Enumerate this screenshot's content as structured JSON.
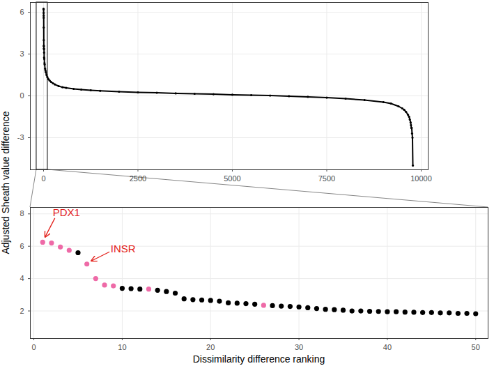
{
  "chart_data": [
    {
      "type": "scatter",
      "x": [
        1,
        2,
        3,
        4,
        5,
        6,
        7,
        8,
        9,
        10,
        13,
        16,
        17,
        20,
        26,
        30,
        40,
        50,
        60,
        80,
        100,
        130,
        160,
        200,
        250,
        300,
        400,
        500,
        600,
        800,
        1000,
        1250,
        1500,
        2000,
        2500,
        3000,
        3500,
        4000,
        4500,
        5000,
        5500,
        6000,
        6500,
        7000,
        7500,
        8000,
        8500,
        9000,
        9200,
        9400,
        9500,
        9550,
        9600,
        9650,
        9680,
        9700,
        9720,
        9730,
        9740,
        9750,
        9760,
        9770,
        9780
      ],
      "values": [
        6.25,
        6.2,
        5.95,
        5.75,
        5.6,
        4.9,
        4.0,
        3.6,
        3.55,
        3.4,
        3.35,
        3.1,
        2.75,
        2.65,
        2.35,
        2.25,
        1.95,
        1.83,
        1.7,
        1.5,
        1.35,
        1.2,
        1.1,
        1.0,
        0.9,
        0.82,
        0.7,
        0.62,
        0.57,
        0.5,
        0.45,
        0.4,
        0.36,
        0.3,
        0.25,
        0.22,
        0.18,
        0.15,
        0.12,
        0.08,
        0.05,
        0.02,
        -0.02,
        -0.07,
        -0.13,
        -0.2,
        -0.3,
        -0.45,
        -0.55,
        -0.75,
        -0.9,
        -1.0,
        -1.15,
        -1.35,
        -1.5,
        -1.7,
        -1.9,
        -2.1,
        -2.3,
        -2.3,
        -2.7,
        -3.0,
        -5.0
      ],
      "color": "#000000",
      "xlim": [
        -350,
        10185
      ],
      "xticks": [
        0,
        2500,
        5000,
        7500,
        10000
      ],
      "ylim": [
        -5.3,
        6.7
      ],
      "yticks": [
        -3,
        0,
        3,
        6
      ],
      "grid": true,
      "zoom_box": {
        "x": [
          -185,
          110
        ]
      }
    },
    {
      "type": "scatter",
      "x": [
        1,
        2,
        3,
        4,
        5,
        6,
        7,
        8,
        9,
        10,
        11,
        12,
        13,
        14,
        15,
        16,
        17,
        18,
        19,
        20,
        21,
        22,
        23,
        24,
        25,
        26,
        27,
        28,
        29,
        30,
        31,
        32,
        33,
        34,
        35,
        36,
        37,
        38,
        39,
        40,
        41,
        42,
        43,
        44,
        45,
        46,
        47,
        48,
        49,
        50
      ],
      "values": [
        6.25,
        6.2,
        5.95,
        5.75,
        5.6,
        4.9,
        4.0,
        3.6,
        3.55,
        3.4,
        3.38,
        3.35,
        3.35,
        3.28,
        3.2,
        3.1,
        2.75,
        2.7,
        2.68,
        2.65,
        2.6,
        2.5,
        2.48,
        2.45,
        2.42,
        2.35,
        2.33,
        2.3,
        2.28,
        2.25,
        2.2,
        2.15,
        2.1,
        2.08,
        2.05,
        2.0,
        2.0,
        1.98,
        1.97,
        1.95,
        1.95,
        1.93,
        1.92,
        1.9,
        1.9,
        1.88,
        1.88,
        1.85,
        1.85,
        1.83
      ],
      "colors": [
        "#ee6aa7",
        "#ee6aa7",
        "#ee6aa7",
        "#ee6aa7",
        "#000000",
        "#ee6aa7",
        "#ee6aa7",
        "#ee6aa7",
        "#ee6aa7",
        "#000000",
        "#000000",
        "#000000",
        "#ee6aa7",
        "#000000",
        "#000000",
        "#000000",
        "#000000",
        "#000000",
        "#000000",
        "#000000",
        "#000000",
        "#000000",
        "#000000",
        "#000000",
        "#000000",
        "#ee6aa7",
        "#000000",
        "#000000",
        "#000000",
        "#000000",
        "#000000",
        "#000000",
        "#000000",
        "#000000",
        "#000000",
        "#000000",
        "#000000",
        "#000000",
        "#000000",
        "#000000",
        "#000000",
        "#000000",
        "#000000",
        "#000000",
        "#000000",
        "#000000",
        "#000000",
        "#000000",
        "#000000",
        "#000000"
      ],
      "xlabel": "Dissimilarity difference ranking",
      "ylabel": "Adjusted Sheath value difference",
      "xlim": [
        -0.4,
        51.4
      ],
      "xticks": [
        0,
        10,
        20,
        30,
        40,
        50
      ],
      "ylim": [
        0.3,
        8.4
      ],
      "yticks": [
        2,
        4,
        6,
        8
      ],
      "grid": true,
      "annotations": [
        {
          "text": "PDX1",
          "x": 1,
          "y": 6.25,
          "color": "#e3201b"
        },
        {
          "text": "INSR",
          "x": 6,
          "y": 4.9,
          "color": "#e3201b"
        }
      ]
    }
  ]
}
